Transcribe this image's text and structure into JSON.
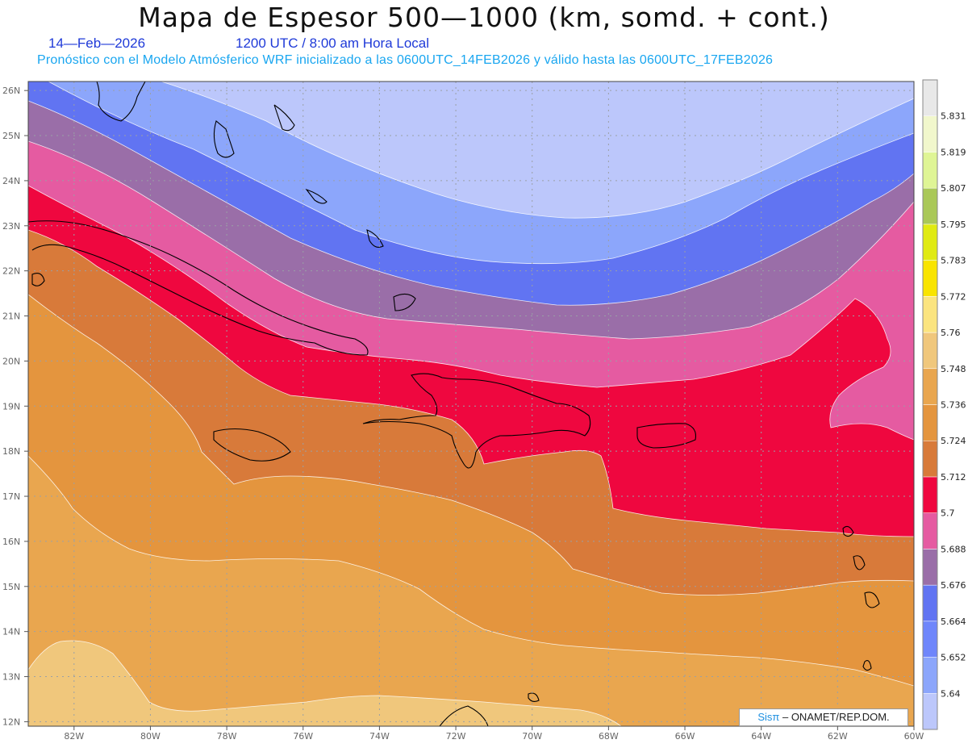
{
  "header": {
    "title": "Mapa de Espesor 500—1000 (km, somd. + cont.)",
    "date": "14—Feb—2026",
    "time": "1200 UTC / 8:00 am Hora Local",
    "info": "Pronóstico con el Modelo Atmósferico WRF inicializado a las 0600UTC_14FEB2026 y válido hasta las  0600UTC_17FEB2026"
  },
  "map": {
    "lat_labels": [
      "26N",
      "25N",
      "24N",
      "23N",
      "22N",
      "21N",
      "20N",
      "19N",
      "18N",
      "17N",
      "16N",
      "15N",
      "14N",
      "13N",
      "12N"
    ],
    "lon_labels": [
      "82W",
      "80W",
      "78W",
      "76W",
      "74W",
      "72W",
      "70W",
      "68W",
      "66W",
      "64W",
      "62W",
      "60W"
    ],
    "band_colors": [
      "#bcc7fb",
      "#8ca6fb",
      "#6174f2",
      "#9a6ea8",
      "#e55ba1",
      "#ef073f",
      "#d87a3a",
      "#e4953e",
      "#e9a64f",
      "#f0c77c"
    ]
  },
  "colorbar": {
    "colors": [
      "#bcc7fb",
      "#8ca6fb",
      "#6f86fb",
      "#6174f2",
      "#9a6ea8",
      "#e55ba1",
      "#ef073f",
      "#d87a3a",
      "#e4953e",
      "#e9a64f",
      "#f0c77c",
      "#fbe47f",
      "#f9e400",
      "#e0ea12",
      "#aac858",
      "#dff595",
      "#f1f7cc",
      "#e8e8e8"
    ],
    "labels": [
      "5.64",
      "5.652",
      "5.664",
      "5.676",
      "5.688",
      "5.7",
      "5.712",
      "5.724",
      "5.736",
      "5.748",
      "5.76",
      "5.772",
      "5.783",
      "5.795",
      "5.807",
      "5.819",
      "5.831"
    ]
  },
  "credit": {
    "brand": "Sisπ",
    "text": " – ONAMET/REP.DOM."
  }
}
